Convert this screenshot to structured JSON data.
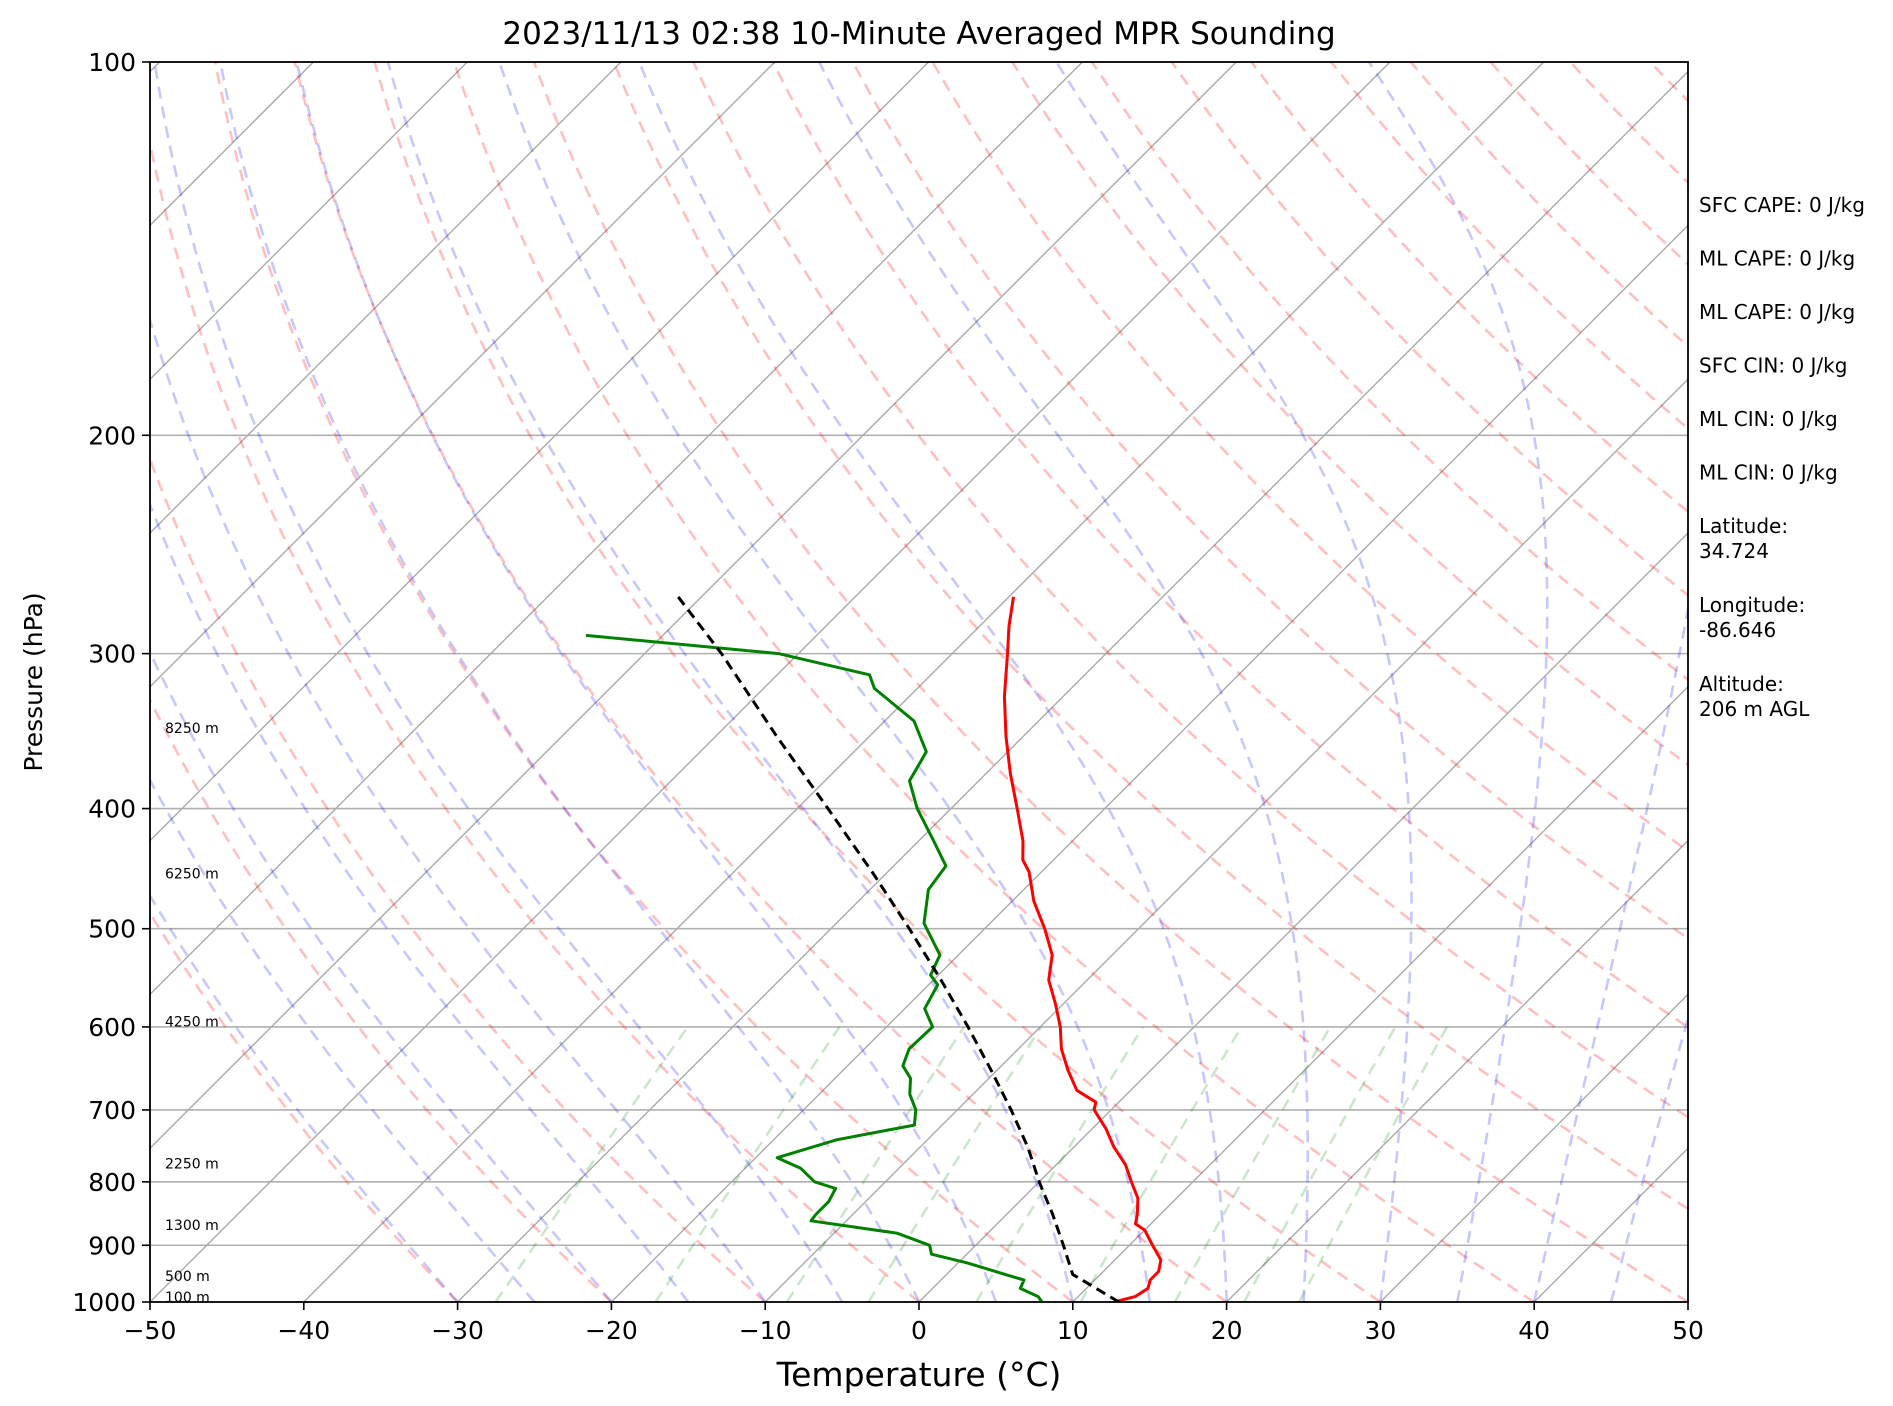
{
  "chart_data": {
    "type": "line",
    "title": "2023/11/13 02:38 10-Minute Averaged MPR Sounding",
    "xlabel": "Temperature (°C)",
    "ylabel": "Pressure (hPa)",
    "xlim": [
      -50,
      50
    ],
    "ylim": [
      1000,
      100
    ],
    "y_scale": "log",
    "skew_degrees": 45,
    "grid": true,
    "x_ticks": [
      -50,
      -40,
      -30,
      -20,
      -10,
      0,
      10,
      20,
      30,
      40,
      50
    ],
    "x_tick_labels": [
      "−50",
      "−40",
      "−30",
      "−20",
      "−10",
      "0",
      "10",
      "20",
      "30",
      "40",
      "50"
    ],
    "y_ticks": [
      1000,
      900,
      800,
      700,
      600,
      500,
      400,
      300,
      200,
      100
    ],
    "y_tick_labels": [
      "1000",
      "900",
      "800",
      "700",
      "600",
      "500",
      "400",
      "300",
      "200",
      "100"
    ],
    "height_labels": [
      {
        "text": "100 m",
        "pressure": 993
      },
      {
        "text": "500 m",
        "pressure": 955
      },
      {
        "text": "1300 m",
        "pressure": 868
      },
      {
        "text": "2250 m",
        "pressure": 775
      },
      {
        "text": "4250 m",
        "pressure": 595
      },
      {
        "text": "6250 m",
        "pressure": 452
      },
      {
        "text": "8250 m",
        "pressure": 345
      }
    ],
    "series": [
      {
        "role": "temperature",
        "color": "#ff0000",
        "points": [
          [
            1000,
            12.7
          ],
          [
            990,
            13.7
          ],
          [
            975,
            14.0
          ],
          [
            960,
            13.6
          ],
          [
            945,
            13.6
          ],
          [
            925,
            13.0
          ],
          [
            900,
            11.5
          ],
          [
            875,
            10.0
          ],
          [
            865,
            9.0
          ],
          [
            850,
            8.5
          ],
          [
            825,
            7.5
          ],
          [
            800,
            6.0
          ],
          [
            775,
            4.5
          ],
          [
            750,
            2.6
          ],
          [
            725,
            0.9
          ],
          [
            700,
            -1.1
          ],
          [
            690,
            -1.5
          ],
          [
            675,
            -3.5
          ],
          [
            650,
            -5.4
          ],
          [
            625,
            -7.2
          ],
          [
            600,
            -8.7
          ],
          [
            575,
            -10.5
          ],
          [
            550,
            -12.5
          ],
          [
            525,
            -13.9
          ],
          [
            500,
            -16.1
          ],
          [
            475,
            -18.6
          ],
          [
            450,
            -20.8
          ],
          [
            440,
            -22.0
          ],
          [
            425,
            -23.2
          ],
          [
            400,
            -25.7
          ],
          [
            375,
            -28.4
          ],
          [
            350,
            -31.1
          ],
          [
            325,
            -33.8
          ],
          [
            300,
            -36.4
          ],
          [
            285,
            -38.1
          ],
          [
            270,
            -39.7
          ]
        ]
      },
      {
        "role": "dewpoint",
        "color": "#008000",
        "points": [
          [
            1000,
            8.0
          ],
          [
            990,
            7.4
          ],
          [
            975,
            5.7
          ],
          [
            960,
            5.4
          ],
          [
            950,
            3.8
          ],
          [
            930,
            0.6
          ],
          [
            915,
            -2.3
          ],
          [
            900,
            -3.0
          ],
          [
            880,
            -5.9
          ],
          [
            860,
            -12.3
          ],
          [
            850,
            -12.4
          ],
          [
            830,
            -12.4
          ],
          [
            810,
            -12.8
          ],
          [
            800,
            -14.6
          ],
          [
            780,
            -16.4
          ],
          [
            765,
            -18.6
          ],
          [
            740,
            -15.9
          ],
          [
            720,
            -11.8
          ],
          [
            700,
            -12.7
          ],
          [
            680,
            -14.1
          ],
          [
            660,
            -15.1
          ],
          [
            645,
            -16.4
          ],
          [
            625,
            -17.1
          ],
          [
            600,
            -17.0
          ],
          [
            580,
            -18.7
          ],
          [
            555,
            -19.4
          ],
          [
            545,
            -20.5
          ],
          [
            525,
            -21.2
          ],
          [
            495,
            -24.3
          ],
          [
            465,
            -26.2
          ],
          [
            445,
            -26.6
          ],
          [
            425,
            -29.0
          ],
          [
            400,
            -32.2
          ],
          [
            380,
            -34.5
          ],
          [
            360,
            -35.3
          ],
          [
            340,
            -38.1
          ],
          [
            320,
            -42.8
          ],
          [
            312,
            -44.0
          ],
          [
            300,
            -51.3
          ],
          [
            290,
            -65.0
          ]
        ]
      },
      {
        "role": "parcel",
        "color": "#000000",
        "points": [
          [
            1000,
            13.0
          ],
          [
            950,
            8.2
          ],
          [
            900,
            5.7
          ],
          [
            850,
            3.0
          ],
          [
            800,
            0.0
          ],
          [
            750,
            -3.0
          ],
          [
            700,
            -6.5
          ],
          [
            650,
            -10.4
          ],
          [
            600,
            -14.7
          ],
          [
            550,
            -19.5
          ],
          [
            500,
            -24.9
          ],
          [
            450,
            -31.0
          ],
          [
            400,
            -38.0
          ],
          [
            350,
            -46.0
          ],
          [
            300,
            -55.0
          ],
          [
            270,
            -61.5
          ]
        ]
      }
    ],
    "info_panel": [
      "SFC CAPE: 0 J/kg",
      "ML CAPE: 0 J/kg",
      "ML CAPE: 0 J/kg",
      "SFC CIN: 0 J/kg",
      "ML CIN: 0 J/kg",
      "ML CIN: 0 J/kg",
      "Latitude:\n34.724",
      "Longitude:\n-86.646",
      "Altitude:\n206 m AGL"
    ]
  }
}
